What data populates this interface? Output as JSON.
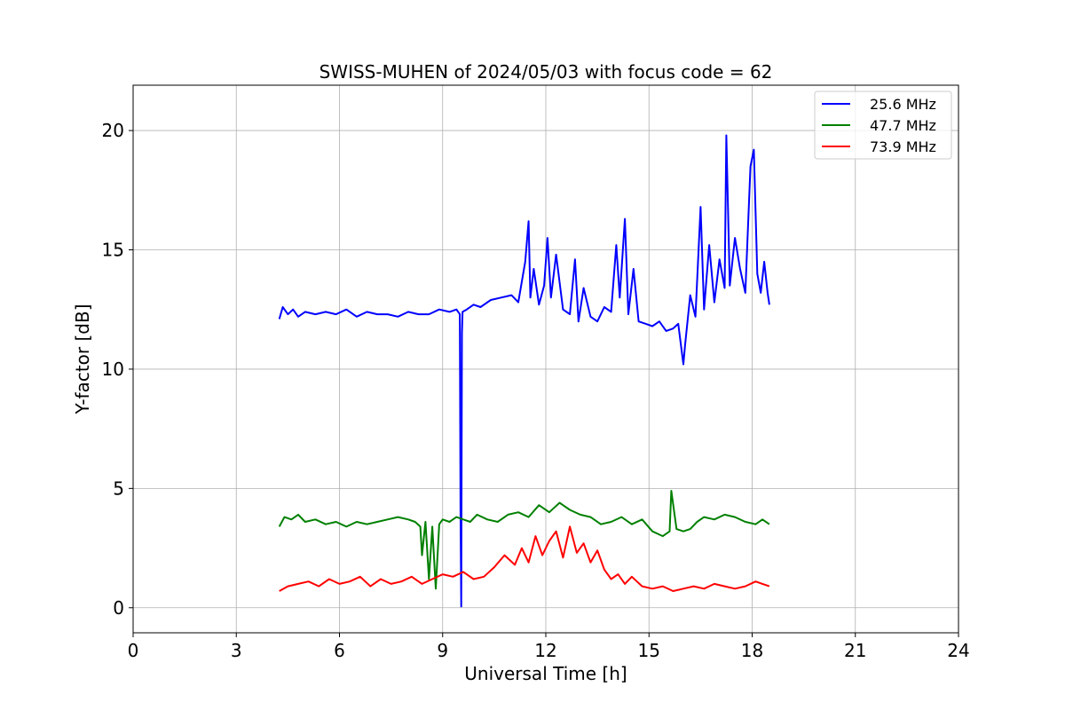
{
  "chart_data": {
    "type": "line",
    "title": "SWISS-MUHEN of 2024/05/03 with focus code = 62",
    "xlabel": "Universal Time [h]",
    "ylabel": "Y-factor [dB]",
    "xlim": [
      0,
      24
    ],
    "ylim": [
      -1.05,
      21.9
    ],
    "xticks": [
      0,
      3,
      6,
      9,
      12,
      15,
      18,
      21,
      24
    ],
    "yticks": [
      0,
      5,
      10,
      15,
      20
    ],
    "grid": true,
    "legend_position": "top-right",
    "series": [
      {
        "name": "25.6 MHz",
        "color": "#0000ff",
        "x": [
          4.25,
          4.35,
          4.5,
          4.65,
          4.8,
          5.0,
          5.3,
          5.6,
          5.9,
          6.2,
          6.5,
          6.8,
          7.1,
          7.4,
          7.7,
          8.0,
          8.3,
          8.6,
          8.9,
          9.2,
          9.4,
          9.5,
          9.52,
          9.54,
          9.56,
          9.58,
          9.7,
          9.9,
          10.1,
          10.4,
          10.7,
          11.0,
          11.2,
          11.4,
          11.5,
          11.55,
          11.65,
          11.8,
          11.95,
          12.05,
          12.15,
          12.3,
          12.5,
          12.7,
          12.85,
          12.95,
          13.1,
          13.3,
          13.5,
          13.7,
          13.9,
          14.05,
          14.15,
          14.3,
          14.4,
          14.55,
          14.7,
          14.9,
          15.1,
          15.3,
          15.5,
          15.7,
          15.85,
          16.0,
          16.05,
          16.2,
          16.35,
          16.5,
          16.6,
          16.75,
          16.9,
          17.05,
          17.2,
          17.25,
          17.35,
          17.5,
          17.65,
          17.8,
          17.95,
          18.05,
          18.15,
          18.25,
          18.35,
          18.45,
          18.5
        ],
        "values": [
          12.1,
          12.6,
          12.3,
          12.5,
          12.2,
          12.4,
          12.3,
          12.4,
          12.3,
          12.5,
          12.2,
          12.4,
          12.3,
          12.3,
          12.2,
          12.4,
          12.3,
          12.3,
          12.5,
          12.4,
          12.5,
          12.3,
          4.0,
          0.05,
          11.5,
          12.4,
          12.5,
          12.7,
          12.6,
          12.9,
          13.0,
          13.1,
          12.8,
          14.5,
          16.2,
          13.0,
          14.2,
          12.7,
          13.5,
          15.5,
          13.0,
          14.8,
          12.5,
          12.3,
          14.6,
          12.0,
          13.4,
          12.2,
          12.0,
          12.6,
          12.4,
          15.2,
          13.0,
          16.3,
          12.3,
          14.2,
          12.0,
          11.9,
          11.8,
          12.0,
          11.6,
          11.7,
          11.9,
          10.2,
          11.0,
          13.1,
          12.2,
          16.8,
          12.5,
          15.2,
          12.8,
          14.6,
          13.4,
          19.8,
          13.5,
          15.5,
          14.2,
          13.2,
          18.5,
          19.2,
          14.0,
          13.2,
          14.5,
          13.2,
          12.7
        ]
      },
      {
        "name": "47.7 MHz",
        "color": "#008000",
        "x": [
          4.25,
          4.4,
          4.6,
          4.8,
          5.0,
          5.3,
          5.6,
          5.9,
          6.2,
          6.5,
          6.8,
          7.1,
          7.4,
          7.7,
          8.0,
          8.2,
          8.35,
          8.4,
          8.5,
          8.6,
          8.7,
          8.8,
          8.9,
          9.0,
          9.2,
          9.4,
          9.6,
          9.8,
          10.0,
          10.3,
          10.6,
          10.9,
          11.2,
          11.5,
          11.8,
          12.1,
          12.4,
          12.7,
          13.0,
          13.3,
          13.6,
          13.9,
          14.2,
          14.5,
          14.8,
          15.1,
          15.4,
          15.6,
          15.65,
          15.8,
          16.0,
          16.2,
          16.4,
          16.6,
          16.9,
          17.2,
          17.5,
          17.8,
          18.1,
          18.3,
          18.5
        ],
        "values": [
          3.4,
          3.8,
          3.7,
          3.9,
          3.6,
          3.7,
          3.5,
          3.6,
          3.4,
          3.6,
          3.5,
          3.6,
          3.7,
          3.8,
          3.7,
          3.6,
          3.4,
          2.2,
          3.6,
          1.2,
          3.4,
          0.8,
          3.5,
          3.7,
          3.6,
          3.8,
          3.7,
          3.6,
          3.9,
          3.7,
          3.6,
          3.9,
          4.0,
          3.8,
          4.3,
          4.0,
          4.4,
          4.1,
          3.9,
          3.8,
          3.5,
          3.6,
          3.8,
          3.5,
          3.7,
          3.2,
          3.0,
          3.2,
          4.9,
          3.3,
          3.2,
          3.3,
          3.6,
          3.8,
          3.7,
          3.9,
          3.8,
          3.6,
          3.5,
          3.7,
          3.5
        ]
      },
      {
        "name": "73.9 MHz",
        "color": "#ff0000",
        "x": [
          4.25,
          4.5,
          4.8,
          5.1,
          5.4,
          5.7,
          6.0,
          6.3,
          6.6,
          6.9,
          7.2,
          7.5,
          7.8,
          8.1,
          8.4,
          8.7,
          9.0,
          9.3,
          9.6,
          9.9,
          10.2,
          10.5,
          10.8,
          11.1,
          11.3,
          11.5,
          11.7,
          11.9,
          12.1,
          12.3,
          12.5,
          12.7,
          12.9,
          13.1,
          13.3,
          13.5,
          13.7,
          13.9,
          14.1,
          14.3,
          14.5,
          14.8,
          15.1,
          15.4,
          15.7,
          16.0,
          16.3,
          16.6,
          16.9,
          17.2,
          17.5,
          17.8,
          18.1,
          18.3,
          18.5
        ],
        "values": [
          0.7,
          0.9,
          1.0,
          1.1,
          0.9,
          1.2,
          1.0,
          1.1,
          1.3,
          0.9,
          1.2,
          1.0,
          1.1,
          1.3,
          1.0,
          1.2,
          1.4,
          1.3,
          1.5,
          1.2,
          1.3,
          1.7,
          2.2,
          1.8,
          2.5,
          1.9,
          3.0,
          2.2,
          2.8,
          3.2,
          2.1,
          3.4,
          2.3,
          2.7,
          1.9,
          2.4,
          1.6,
          1.2,
          1.4,
          1.0,
          1.3,
          0.9,
          0.8,
          0.9,
          0.7,
          0.8,
          0.9,
          0.8,
          1.0,
          0.9,
          0.8,
          0.9,
          1.1,
          1.0,
          0.9
        ]
      }
    ]
  }
}
